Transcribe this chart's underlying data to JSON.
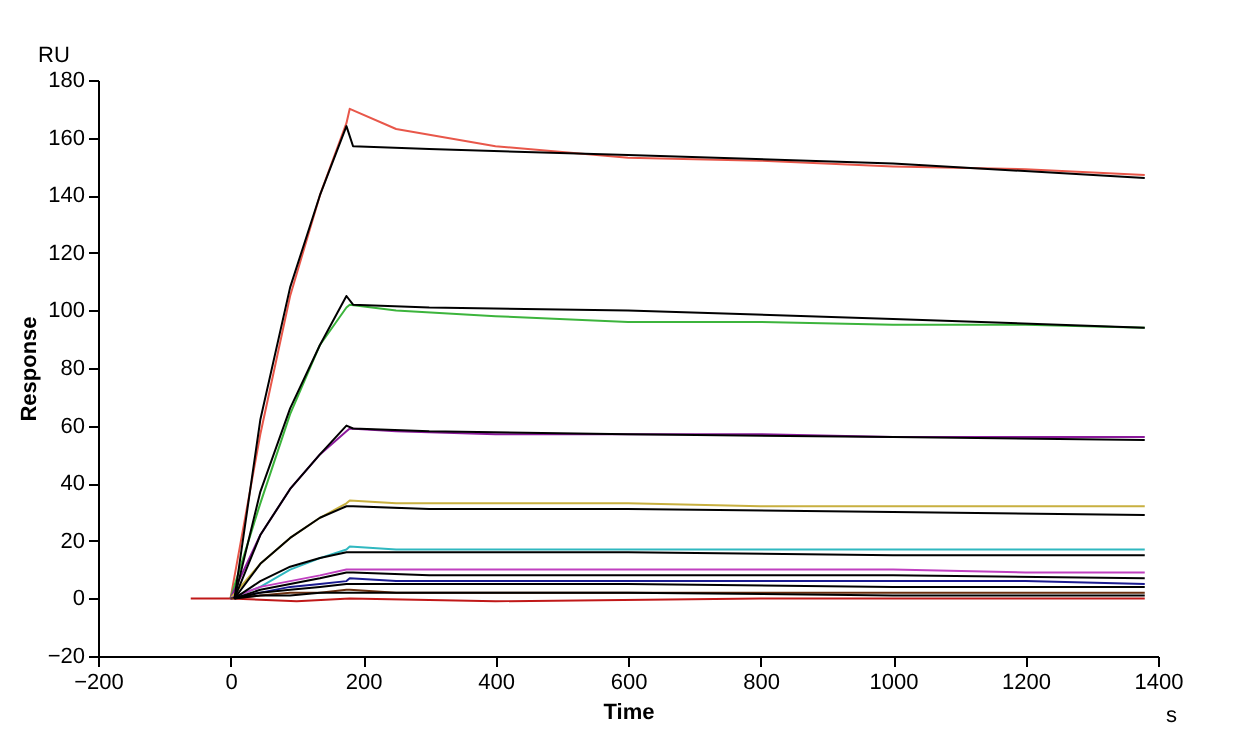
{
  "chart_data": {
    "type": "line",
    "xlabel": "Time",
    "ylabel": "Response",
    "annotations": [
      "RU",
      "s"
    ],
    "xlim": [
      -200,
      1400
    ],
    "xticks": [
      -200,
      0,
      200,
      400,
      600,
      800,
      1000,
      1200,
      1400
    ],
    "ylim": [
      -20,
      180
    ],
    "yticks": [
      -20,
      0,
      20,
      40,
      60,
      80,
      100,
      120,
      140,
      160,
      180
    ],
    "grid": false,
    "marker": "none",
    "line_style": "solid",
    "series": [
      {
        "color": "#c01818",
        "x": [
          -60,
          0,
          100,
          180,
          400,
          800,
          1380
        ],
        "values": [
          0,
          0,
          -1,
          0,
          -1,
          0,
          0
        ]
      },
      {
        "color": "#e8574a",
        "x": [
          0,
          45,
          90,
          135,
          175,
          180,
          250,
          400,
          600,
          800,
          1000,
          1200,
          1380
        ],
        "values": [
          0,
          57,
          105,
          140,
          165,
          170,
          163,
          157,
          153,
          152,
          150,
          149,
          147
        ]
      },
      {
        "color": "#3cb43c",
        "x": [
          0,
          45,
          90,
          135,
          175,
          180,
          250,
          400,
          600,
          800,
          1000,
          1200,
          1380
        ],
        "values": [
          0,
          33,
          64,
          88,
          101,
          102,
          100,
          98,
          96,
          96,
          95,
          95,
          94
        ]
      },
      {
        "color": "#8b1a9b",
        "x": [
          0,
          45,
          90,
          135,
          175,
          180,
          250,
          400,
          600,
          800,
          1000,
          1200,
          1380
        ],
        "values": [
          0,
          22,
          38,
          50,
          58,
          59,
          58,
          57,
          57,
          57,
          56,
          56,
          56
        ]
      },
      {
        "color": "#c8b040",
        "x": [
          0,
          45,
          90,
          135,
          175,
          180,
          250,
          400,
          600,
          800,
          1000,
          1200,
          1380
        ],
        "values": [
          0,
          12,
          21,
          28,
          33,
          34,
          33,
          33,
          33,
          32,
          32,
          32,
          32
        ]
      },
      {
        "color": "#30b8c0",
        "x": [
          0,
          45,
          90,
          135,
          175,
          180,
          250,
          400,
          600,
          800,
          1000,
          1200,
          1380
        ],
        "values": [
          0,
          4,
          10,
          14,
          17,
          18,
          17,
          17,
          17,
          17,
          17,
          17,
          17
        ]
      },
      {
        "color": "#c040c0",
        "x": [
          0,
          45,
          90,
          135,
          175,
          180,
          250,
          400,
          600,
          800,
          1000,
          1200,
          1380
        ],
        "values": [
          0,
          4,
          6,
          8,
          10,
          10,
          10,
          10,
          10,
          10,
          10,
          9,
          9
        ]
      },
      {
        "color": "#1a1a90",
        "x": [
          0,
          45,
          90,
          135,
          175,
          180,
          250,
          400,
          600,
          800,
          1000,
          1200,
          1380
        ],
        "values": [
          0,
          2,
          4,
          5,
          6,
          7,
          6,
          6,
          6,
          6,
          6,
          6,
          5
        ]
      },
      {
        "color": "#6b3010",
        "x": [
          0,
          45,
          90,
          135,
          175,
          180,
          250,
          400,
          600,
          800,
          1000,
          1200,
          1380
        ],
        "values": [
          0,
          1,
          2,
          2,
          3,
          3,
          2,
          2,
          2,
          2,
          2,
          2,
          2
        ]
      },
      {
        "color": "#000000",
        "x": [
          0,
          45,
          90,
          135,
          175,
          185,
          300,
          600,
          1000,
          1380
        ],
        "values": [
          0,
          62,
          108,
          140,
          164,
          157,
          156,
          154,
          151,
          146
        ]
      },
      {
        "color": "#000000",
        "x": [
          0,
          45,
          90,
          135,
          175,
          185,
          300,
          600,
          1000,
          1380
        ],
        "values": [
          0,
          37,
          66,
          88,
          105,
          102,
          101,
          100,
          97,
          94
        ]
      },
      {
        "color": "#000000",
        "x": [
          0,
          45,
          90,
          135,
          175,
          185,
          300,
          600,
          1000,
          1380
        ],
        "values": [
          0,
          22,
          38,
          50,
          60,
          59,
          58,
          57,
          56,
          55
        ]
      },
      {
        "color": "#000000",
        "x": [
          0,
          45,
          90,
          135,
          175,
          185,
          300,
          600,
          1000,
          1380
        ],
        "values": [
          0,
          12,
          21,
          28,
          32,
          32,
          31,
          31,
          30,
          29
        ]
      },
      {
        "color": "#000000",
        "x": [
          0,
          45,
          90,
          135,
          175,
          185,
          300,
          600,
          1000,
          1380
        ],
        "values": [
          0,
          6,
          11,
          14,
          16,
          16,
          16,
          16,
          15,
          15
        ]
      },
      {
        "color": "#000000",
        "x": [
          0,
          45,
          90,
          135,
          175,
          185,
          300,
          600,
          1000,
          1380
        ],
        "values": [
          0,
          3,
          5,
          7,
          9,
          9,
          8,
          8,
          8,
          7
        ]
      },
      {
        "color": "#000000",
        "x": [
          0,
          45,
          90,
          135,
          175,
          185,
          300,
          600,
          1000,
          1380
        ],
        "values": [
          0,
          2,
          3,
          4,
          5,
          5,
          5,
          5,
          4,
          4
        ]
      },
      {
        "color": "#000000",
        "x": [
          0,
          45,
          90,
          135,
          175,
          185,
          300,
          600,
          1000,
          1380
        ],
        "values": [
          0,
          1,
          1,
          2,
          2,
          2,
          2,
          2,
          1,
          1
        ]
      }
    ]
  }
}
